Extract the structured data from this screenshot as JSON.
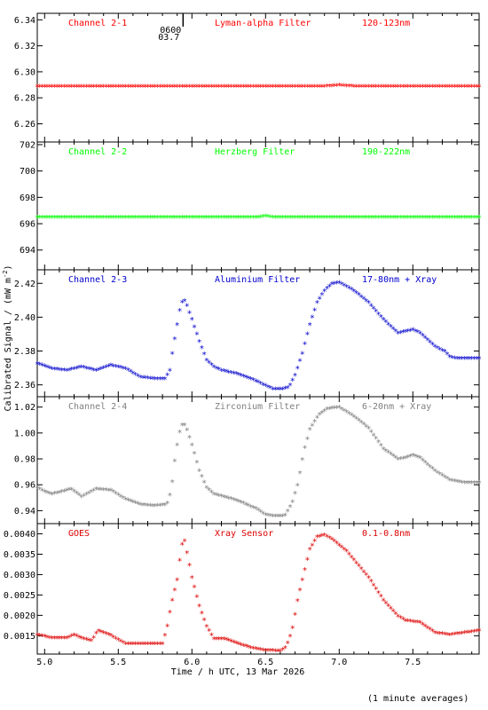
{
  "xlabel": "Time / h UTC, 13 Mar 2026",
  "ylabel": "Calibrated Signal / (mW m",
  "ylabel_sup": "-2",
  "ylabel_close": ")",
  "footnote": "(1 minute averages)",
  "marker": {
    "text_top": "0600",
    "text_bottom": "03.7"
  },
  "chart_data": [
    {
      "type": "scatter",
      "channel": "Channel 2-1",
      "filter": "Lyman-alpha Filter",
      "band": "120-123nm",
      "color": "#ff0000",
      "xlim": [
        4.95,
        7.95
      ],
      "ylim": [
        6.246,
        6.345
      ],
      "xticks": [
        5.0,
        5.5,
        6.0,
        6.5,
        7.0,
        7.5
      ],
      "yticks": [
        6.26,
        6.28,
        6.3,
        6.32,
        6.34
      ],
      "ytick_labels": [
        "6.26",
        "6.28",
        "6.30",
        "6.32",
        "6.34"
      ],
      "keypoints": [
        [
          4.95,
          6.288
        ],
        [
          5.3,
          6.288
        ],
        [
          6.9,
          6.288
        ],
        [
          7.0,
          6.289
        ],
        [
          7.1,
          6.288
        ],
        [
          7.95,
          6.288
        ]
      ]
    },
    {
      "type": "scatter",
      "channel": "Channel 2-2",
      "filter": "Herzberg Filter",
      "band": "190-222nm",
      "color": "#00ff00",
      "xlim": [
        4.95,
        7.95
      ],
      "ylim": [
        692.5,
        702.2
      ],
      "xticks": [
        5.0,
        5.5,
        6.0,
        6.5,
        7.0,
        7.5
      ],
      "yticks": [
        694,
        696,
        698,
        700,
        702
      ],
      "ytick_labels": [
        "694",
        "696",
        "698",
        "700",
        "702"
      ],
      "keypoints": [
        [
          4.95,
          696.4
        ],
        [
          6.45,
          696.4
        ],
        [
          6.5,
          696.5
        ],
        [
          6.55,
          696.4
        ],
        [
          7.95,
          696.4
        ]
      ]
    },
    {
      "type": "scatter",
      "channel": "Channel 2-3",
      "filter": "Aluminium Filter",
      "band": "17-80nm + Xray",
      "color": "#0000cc",
      "xlim": [
        4.95,
        7.95
      ],
      "ylim": [
        2.353,
        2.428
      ],
      "xticks": [
        5.0,
        5.5,
        6.0,
        6.5,
        7.0,
        7.5
      ],
      "yticks": [
        2.36,
        2.38,
        2.4,
        2.42
      ],
      "ytick_labels": [
        "2.36",
        "2.38",
        "2.40",
        "2.42"
      ],
      "keypoints": [
        [
          4.95,
          2.372
        ],
        [
          5.05,
          2.369
        ],
        [
          5.15,
          2.368
        ],
        [
          5.25,
          2.37
        ],
        [
          5.35,
          2.368
        ],
        [
          5.45,
          2.371
        ],
        [
          5.55,
          2.369
        ],
        [
          5.65,
          2.364
        ],
        [
          5.75,
          2.363
        ],
        [
          5.82,
          2.363
        ],
        [
          5.85,
          2.368
        ],
        [
          5.87,
          2.38
        ],
        [
          5.9,
          2.395
        ],
        [
          5.92,
          2.405
        ],
        [
          5.94,
          2.41
        ],
        [
          5.96,
          2.408
        ],
        [
          6.0,
          2.398
        ],
        [
          6.05,
          2.385
        ],
        [
          6.1,
          2.374
        ],
        [
          6.15,
          2.37
        ],
        [
          6.2,
          2.368
        ],
        [
          6.3,
          2.366
        ],
        [
          6.4,
          2.363
        ],
        [
          6.5,
          2.359
        ],
        [
          6.55,
          2.357
        ],
        [
          6.62,
          2.357
        ],
        [
          6.66,
          2.358
        ],
        [
          6.7,
          2.365
        ],
        [
          6.75,
          2.378
        ],
        [
          6.8,
          2.395
        ],
        [
          6.85,
          2.408
        ],
        [
          6.9,
          2.415
        ],
        [
          6.95,
          2.419
        ],
        [
          7.0,
          2.42
        ],
        [
          7.1,
          2.415
        ],
        [
          7.2,
          2.408
        ],
        [
          7.3,
          2.398
        ],
        [
          7.4,
          2.39
        ],
        [
          7.45,
          2.391
        ],
        [
          7.5,
          2.392
        ],
        [
          7.55,
          2.39
        ],
        [
          7.65,
          2.382
        ],
        [
          7.72,
          2.379
        ],
        [
          7.75,
          2.376
        ],
        [
          7.8,
          2.375
        ],
        [
          7.95,
          2.375
        ]
      ]
    },
    {
      "type": "scatter",
      "channel": "Channel 2-4",
      "filter": "Zirconium Filter",
      "band": "6-20nm + Xray",
      "color": "#808080",
      "xlim": [
        4.95,
        7.95
      ],
      "ylim": [
        0.93,
        1.028
      ],
      "xticks": [
        5.0,
        5.5,
        6.0,
        6.5,
        7.0,
        7.5
      ],
      "yticks": [
        0.94,
        0.96,
        0.98,
        1.0,
        1.02
      ],
      "ytick_labels": [
        "0.94",
        "0.96",
        "0.98",
        "1.00",
        "1.02"
      ],
      "keypoints": [
        [
          4.95,
          0.957
        ],
        [
          5.0,
          0.954
        ],
        [
          5.05,
          0.952
        ],
        [
          5.12,
          0.954
        ],
        [
          5.18,
          0.956
        ],
        [
          5.25,
          0.95
        ],
        [
          5.35,
          0.956
        ],
        [
          5.45,
          0.955
        ],
        [
          5.55,
          0.948
        ],
        [
          5.65,
          0.944
        ],
        [
          5.75,
          0.943
        ],
        [
          5.83,
          0.944
        ],
        [
          5.86,
          0.955
        ],
        [
          5.88,
          0.975
        ],
        [
          5.9,
          0.99
        ],
        [
          5.92,
          1.002
        ],
        [
          5.94,
          1.007
        ],
        [
          5.96,
          1.004
        ],
        [
          6.0,
          0.99
        ],
        [
          6.05,
          0.97
        ],
        [
          6.1,
          0.957
        ],
        [
          6.15,
          0.952
        ],
        [
          6.25,
          0.949
        ],
        [
          6.35,
          0.945
        ],
        [
          6.45,
          0.94
        ],
        [
          6.5,
          0.936
        ],
        [
          6.55,
          0.935
        ],
        [
          6.63,
          0.935
        ],
        [
          6.68,
          0.945
        ],
        [
          6.72,
          0.96
        ],
        [
          6.76,
          0.985
        ],
        [
          6.8,
          1.002
        ],
        [
          6.86,
          1.013
        ],
        [
          6.92,
          1.018
        ],
        [
          7.0,
          1.019
        ],
        [
          7.1,
          1.012
        ],
        [
          7.2,
          1.003
        ],
        [
          7.3,
          0.987
        ],
        [
          7.4,
          0.979
        ],
        [
          7.45,
          0.98
        ],
        [
          7.5,
          0.982
        ],
        [
          7.55,
          0.98
        ],
        [
          7.65,
          0.97
        ],
        [
          7.75,
          0.963
        ],
        [
          7.85,
          0.961
        ],
        [
          7.95,
          0.961
        ]
      ]
    },
    {
      "type": "scatter",
      "channel": "GOES",
      "filter": "Xray Sensor",
      "band": "0.1-0.8nm",
      "color": "#dd0000",
      "xlim": [
        4.95,
        7.95
      ],
      "ylim": [
        0.00105,
        0.00425
      ],
      "xticks": [
        5.0,
        5.5,
        6.0,
        6.5,
        7.0,
        7.5
      ],
      "yticks": [
        0.0015,
        0.002,
        0.0025,
        0.003,
        0.0035,
        0.004
      ],
      "ytick_labels": [
        "0.0015",
        "0.0020",
        "0.0025",
        "0.0030",
        "0.0035",
        "0.0040"
      ],
      "xtick_labels": [
        "5.0",
        "5.5",
        "6.0",
        "6.5",
        "7.0",
        "7.5"
      ],
      "keypoints": [
        [
          4.95,
          0.0015
        ],
        [
          5.05,
          0.00142
        ],
        [
          5.15,
          0.00142
        ],
        [
          5.2,
          0.0015
        ],
        [
          5.25,
          0.00142
        ],
        [
          5.32,
          0.00135
        ],
        [
          5.36,
          0.0016
        ],
        [
          5.45,
          0.00148
        ],
        [
          5.55,
          0.00128
        ],
        [
          5.7,
          0.00128
        ],
        [
          5.8,
          0.00128
        ],
        [
          5.83,
          0.00165
        ],
        [
          5.86,
          0.00225
        ],
        [
          5.9,
          0.00285
        ],
        [
          5.93,
          0.0037
        ],
        [
          5.95,
          0.0038
        ],
        [
          5.97,
          0.00345
        ],
        [
          6.0,
          0.0029
        ],
        [
          6.05,
          0.0022
        ],
        [
          6.1,
          0.0017
        ],
        [
          6.15,
          0.0014
        ],
        [
          6.22,
          0.0014
        ],
        [
          6.3,
          0.0013
        ],
        [
          6.4,
          0.00118
        ],
        [
          6.5,
          0.00112
        ],
        [
          6.6,
          0.0011
        ],
        [
          6.64,
          0.0012
        ],
        [
          6.68,
          0.0016
        ],
        [
          6.72,
          0.0024
        ],
        [
          6.76,
          0.003
        ],
        [
          6.8,
          0.0036
        ],
        [
          6.85,
          0.0039
        ],
        [
          6.9,
          0.00395
        ],
        [
          6.95,
          0.00385
        ],
        [
          7.05,
          0.00355
        ],
        [
          7.2,
          0.0029
        ],
        [
          7.3,
          0.00235
        ],
        [
          7.4,
          0.00195
        ],
        [
          7.45,
          0.00185
        ],
        [
          7.55,
          0.0018
        ],
        [
          7.65,
          0.00155
        ],
        [
          7.75,
          0.0015
        ],
        [
          7.85,
          0.00155
        ],
        [
          7.95,
          0.0016
        ]
      ]
    }
  ]
}
